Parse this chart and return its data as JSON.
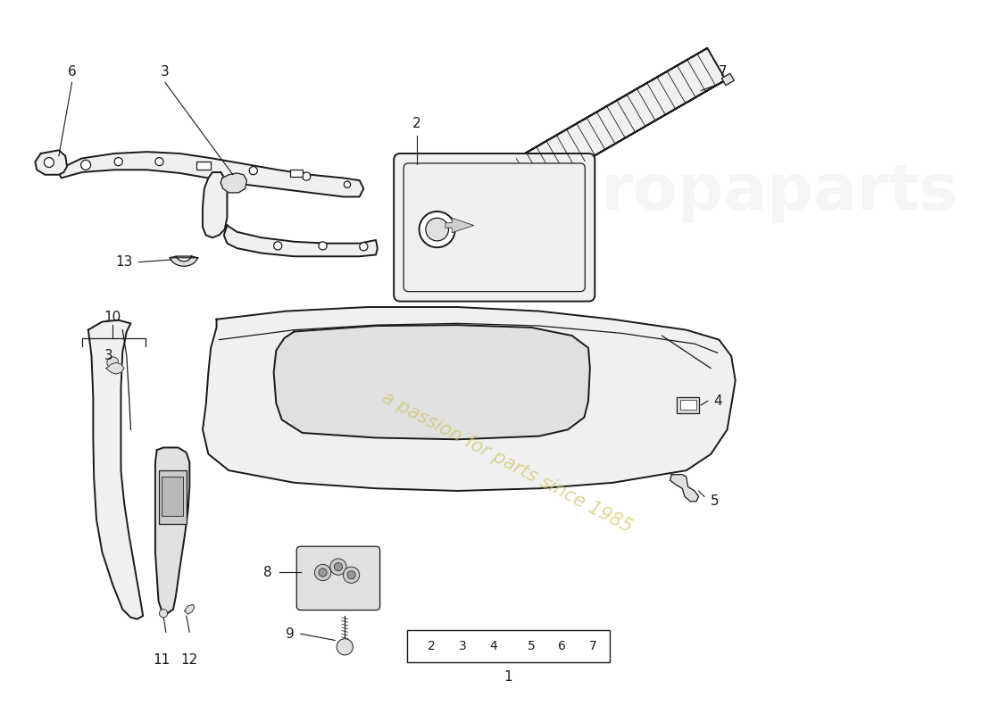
{
  "background_color": "#ffffff",
  "watermark_text": "a passion for parts since 1985",
  "watermark_color": "#d4c56a",
  "line_color": "#1a1a1a",
  "lw": 1.4,
  "tlw": 0.9
}
